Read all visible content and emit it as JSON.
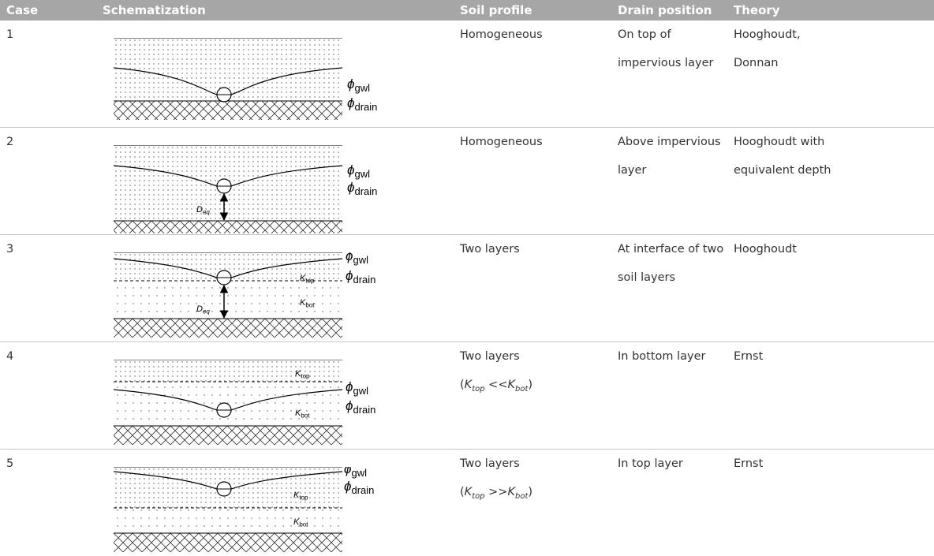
{
  "header": {
    "columns": [
      "Case",
      "Schematization",
      "Soil profile",
      "Drain position",
      "Theory"
    ]
  },
  "rows": [
    {
      "case": "1",
      "diagram": {
        "labels": {
          "gwl": {
            "symbol": "ϕ",
            "sub": "gwl"
          },
          "drain": {
            "symbol": "ϕ",
            "sub": "drain"
          }
        }
      },
      "soil_profile": {
        "text": "Homogeneous"
      },
      "drain_position": [
        "On top of",
        "impervious layer"
      ],
      "theory": [
        "Hooghoudt,",
        "Donnan"
      ]
    },
    {
      "case": "2",
      "diagram": {
        "labels": {
          "gwl": {
            "symbol": "ϕ",
            "sub": "gwl"
          },
          "drain": {
            "symbol": "ϕ",
            "sub": "drain"
          },
          "deq": {
            "symbol": "D",
            "sub": "eq"
          }
        }
      },
      "soil_profile": {
        "text": "Homogeneous"
      },
      "drain_position": [
        "Above impervious",
        "layer"
      ],
      "theory": [
        "Hooghoudt with",
        "equivalent depth"
      ]
    },
    {
      "case": "3",
      "diagram": {
        "labels": {
          "gwl": {
            "symbol": "ϕ",
            "sub": "gwl"
          },
          "drain": {
            "symbol": "ϕ",
            "sub": "drain"
          },
          "deq": {
            "symbol": "D",
            "sub": "eq"
          },
          "ktop": {
            "symbol": "K",
            "sub": "top"
          },
          "kbot": {
            "symbol": "K",
            "sub": "bot"
          }
        }
      },
      "soil_profile": {
        "text": "Two layers"
      },
      "drain_position": [
        "At interface of two",
        "soil layers"
      ],
      "theory": [
        "Hooghoudt"
      ]
    },
    {
      "case": "4",
      "diagram": {
        "labels": {
          "gwl": {
            "symbol": "ϕ",
            "sub": "gwl"
          },
          "drain": {
            "symbol": "ϕ",
            "sub": "drain"
          },
          "ktop": {
            "symbol": "K",
            "sub": "top"
          },
          "kbot": {
            "symbol": "K",
            "sub": "bot"
          }
        }
      },
      "soil_profile": {
        "text": "Two layers",
        "relation": {
          "open": "(",
          "left": {
            "symbol": "K",
            "sub": "top"
          },
          "op": " <<",
          "right": {
            "symbol": "K",
            "sub": "bot"
          },
          "close": ")"
        }
      },
      "drain_position": [
        "In bottom layer"
      ],
      "theory": [
        "Ernst"
      ]
    },
    {
      "case": "5",
      "diagram": {
        "labels": {
          "gwl": {
            "symbol": "ϕ",
            "sub": "gwl"
          },
          "drain": {
            "symbol": "ϕ",
            "sub": "drain"
          },
          "ktop": {
            "symbol": "K",
            "sub": "top"
          },
          "kbot": {
            "symbol": "K",
            "sub": "bot"
          }
        }
      },
      "soil_profile": {
        "text": "Two layers",
        "relation": {
          "open": "(",
          "left": {
            "symbol": "K",
            "sub": "top"
          },
          "op": " >>",
          "right": {
            "symbol": "K",
            "sub": "bot"
          },
          "close": ")"
        }
      },
      "drain_position": [
        "In top layer"
      ],
      "theory": [
        "Ernst"
      ]
    }
  ]
}
